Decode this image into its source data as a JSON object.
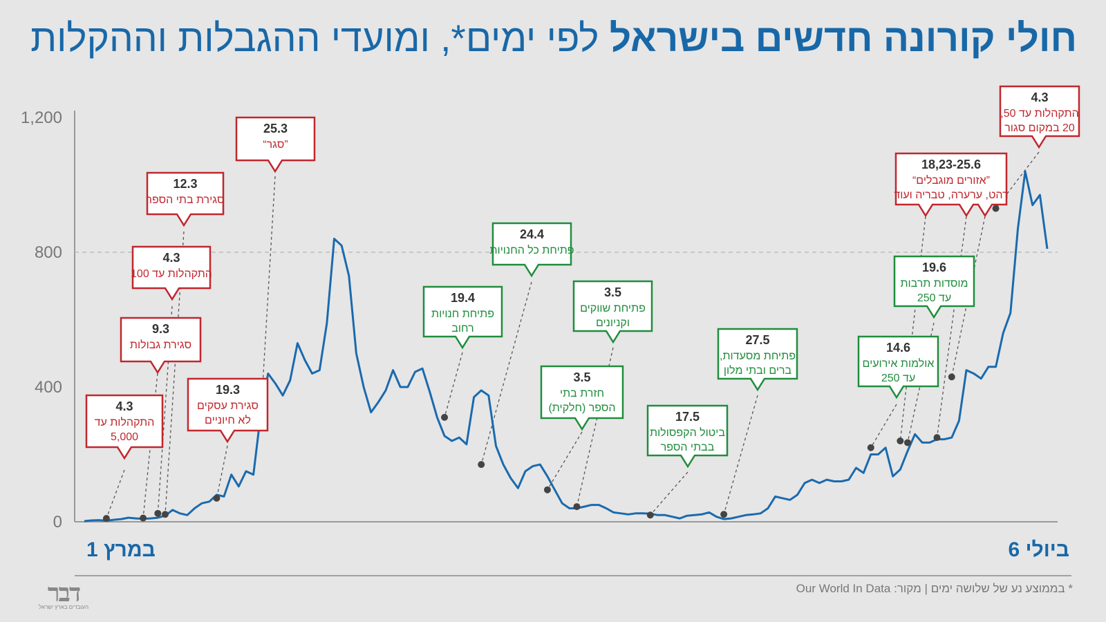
{
  "title": {
    "part1": "חולי קורונה חדשים בישראל",
    "part2": "לפי ימים*, ומועדי ההגבלות וההקלות"
  },
  "footnote": "* בממוצע נע של שלושה ימים | מקור: Our World In Data",
  "logo": {
    "mark": "דבר",
    "tagline": "העובדים בארץ ישראל"
  },
  "colors": {
    "line": "#1a6aae",
    "restriction": "#c0272d",
    "easing": "#1f8d3c",
    "title": "#1868a8",
    "marker": "#444444"
  },
  "chart_data": {
    "type": "line",
    "title": "חולי קורונה חדשים בישראל לפי ימים*, ומועדי ההגבלות וההקלות",
    "x_start_label": "1 במרץ",
    "x_end_label": "6 ביולי",
    "ylim": [
      0,
      1200
    ],
    "yticks": [
      0,
      400,
      800,
      1200
    ],
    "ytick_labels": [
      "0",
      "400",
      "800",
      "1,200"
    ],
    "grid": "dashed line at 800",
    "series": [
      {
        "x_start": "2020-03-01",
        "x_end": "2020-07-06",
        "values": [
          2,
          4,
          5,
          3,
          6,
          8,
          12,
          10,
          9,
          10,
          12,
          18,
          35,
          25,
          20,
          40,
          55,
          60,
          80,
          75,
          140,
          105,
          150,
          140,
          320,
          440,
          410,
          375,
          420,
          530,
          480,
          440,
          450,
          590,
          840,
          820,
          730,
          500,
          400,
          325,
          355,
          390,
          450,
          400,
          400,
          445,
          455,
          385,
          310,
          255,
          240,
          250,
          230,
          370,
          390,
          375,
          225,
          170,
          130,
          100,
          150,
          165,
          170,
          135,
          95,
          55,
          40,
          40,
          45,
          50,
          50,
          40,
          28,
          25,
          22,
          25,
          25,
          24,
          20,
          20,
          15,
          10,
          18,
          20,
          22,
          28,
          15,
          8,
          10,
          15,
          20,
          22,
          25,
          40,
          75,
          70,
          65,
          80,
          115,
          125,
          115,
          125,
          120,
          120,
          125,
          160,
          145,
          200,
          200,
          220,
          135,
          155,
          210,
          260,
          235,
          235,
          245,
          245,
          250,
          300,
          450,
          440,
          425,
          460,
          460,
          560,
          620,
          870,
          1040,
          940,
          970,
          810
        ]
      }
    ],
    "annotations": [
      {
        "kind": "restriction",
        "date": "4.3",
        "text": [
          "התקהלות עד",
          "5,000"
        ],
        "x": 3,
        "y": 10
      },
      {
        "kind": "restriction",
        "date": "9.3",
        "text": [
          "סגירת גבולות"
        ],
        "x": 8,
        "y": 11
      },
      {
        "kind": "restriction",
        "date": "4.3",
        "text": [
          "התקהלות עד 100"
        ],
        "x": 10,
        "y": 25
      },
      {
        "kind": "restriction",
        "date": "12.3",
        "text": [
          "סגירת בתי הספר"
        ],
        "x": 11,
        "y": 22
      },
      {
        "kind": "restriction",
        "date": "19.3",
        "text": [
          "סגירת עסקים",
          "לא חיוניים"
        ],
        "x": 18,
        "y": 70
      },
      {
        "kind": "restriction",
        "date": "25.3",
        "text": [
          "”סגר“"
        ],
        "x": 24,
        "y": 310
      },
      {
        "kind": "easing",
        "date": "19.4",
        "text": [
          "פתיחת חנויות",
          "רחוב"
        ],
        "x": 49,
        "y": 310
      },
      {
        "kind": "easing",
        "date": "24.4",
        "text": [
          "פתיחת כל החנויות"
        ],
        "x": 54,
        "y": 170
      },
      {
        "kind": "easing",
        "date": "3.5",
        "text": [
          "חזרת בתי",
          "הספר (חלקית)"
        ],
        "x": 63,
        "y": 95
      },
      {
        "kind": "easing",
        "date": "3.5",
        "text": [
          "פתיחת שווקים",
          "וקניונים"
        ],
        "x": 67,
        "y": 45
      },
      {
        "kind": "easing",
        "date": "17.5",
        "text": [
          "ביטול הקפסולות",
          "בבתי הספר"
        ],
        "x": 77,
        "y": 20
      },
      {
        "kind": "easing",
        "date": "27.5",
        "text": [
          "פתיחת מסעדות,",
          "ברים ובתי מלון"
        ],
        "x": 87,
        "y": 22
      },
      {
        "kind": "easing",
        "date": "14.6",
        "text": [
          "אולמות אירועים",
          "עד 250"
        ],
        "x": 107,
        "y": 220
      },
      {
        "kind": "easing",
        "date": "19.6",
        "text": [
          "מוסדות תרבות",
          "עד 250"
        ],
        "x": 112,
        "y": 235
      },
      {
        "kind": "restriction",
        "date": "18,23-25.6",
        "text": [
          "”אזורים מוגבלים“",
          "רהט, ערערה, טבריה ועוד"
        ],
        "x": 111,
        "y": 240
      },
      {
        "kind": "restriction",
        "date": "",
        "text": [],
        "x": 116,
        "y": 250
      },
      {
        "kind": "restriction",
        "date": "",
        "text": [],
        "x": 118,
        "y": 430
      },
      {
        "kind": "restriction",
        "date": "4.3",
        "text": [
          "התקהלות עד 50,",
          "20 במקום סגור"
        ],
        "x": 124,
        "y": 930
      }
    ]
  }
}
